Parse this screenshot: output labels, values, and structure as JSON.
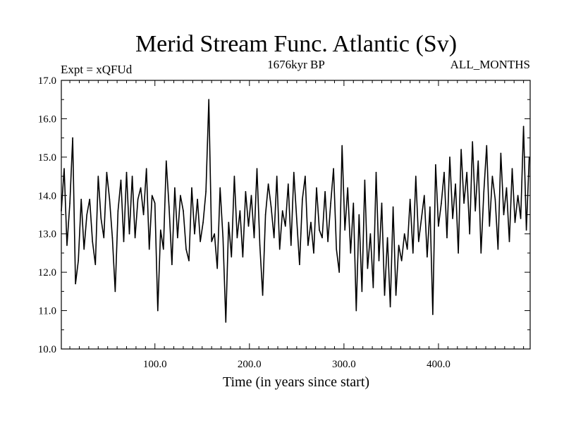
{
  "chart_data": {
    "type": "line",
    "title": "Merid Stream Func. Atlantic (Sv)",
    "subtitle_left": "Expt = xQFUd",
    "subtitle_center": "1676kyr BP",
    "subtitle_right": "ALL_MONTHS",
    "xlabel": "Time (in years since start)",
    "ylabel": "",
    "xlim": [
      1,
      497
    ],
    "ylim": [
      10.0,
      17.0
    ],
    "xticks": [
      100,
      200,
      300,
      400
    ],
    "xtick_labels": [
      "100.0",
      "200.0",
      "300.0",
      "400.0"
    ],
    "yticks": [
      10,
      11,
      12,
      13,
      14,
      15,
      16,
      17
    ],
    "ytick_labels": [
      "10.0",
      "11.0",
      "12.0",
      "13.0",
      "14.0",
      "15.0",
      "16.0",
      "17.0"
    ],
    "grid": false,
    "line_color": "#000000",
    "series": [
      {
        "name": "Merid Stream Func. Atlantic",
        "x": [
          1,
          4,
          7,
          10,
          13,
          16,
          19,
          22,
          25,
          28,
          31,
          34,
          37,
          40,
          43,
          46,
          49,
          52,
          55,
          58,
          61,
          64,
          67,
          70,
          73,
          76,
          79,
          82,
          85,
          88,
          91,
          94,
          97,
          100,
          103,
          106,
          109,
          112,
          115,
          118,
          121,
          124,
          127,
          130,
          133,
          136,
          139,
          142,
          145,
          148,
          151,
          154,
          157,
          160,
          163,
          166,
          169,
          172,
          175,
          178,
          181,
          184,
          187,
          190,
          193,
          196,
          199,
          202,
          205,
          208,
          211,
          214,
          217,
          220,
          223,
          226,
          229,
          232,
          235,
          238,
          241,
          244,
          247,
          250,
          253,
          256,
          259,
          262,
          265,
          268,
          271,
          274,
          277,
          280,
          283,
          286,
          289,
          292,
          295,
          298,
          301,
          304,
          307,
          310,
          313,
          316,
          319,
          322,
          325,
          328,
          331,
          334,
          337,
          340,
          343,
          346,
          349,
          352,
          355,
          358,
          361,
          364,
          367,
          370,
          373,
          376,
          379,
          382,
          385,
          388,
          391,
          394,
          397,
          400,
          403,
          406,
          409,
          412,
          415,
          418,
          421,
          424,
          427,
          430,
          433,
          436,
          439,
          442,
          445,
          448,
          451,
          454,
          457,
          460,
          463,
          466,
          469,
          472,
          475,
          478,
          481,
          484,
          487,
          490,
          493,
          496
        ],
        "values": [
          13.6,
          14.7,
          12.7,
          13.8,
          15.5,
          11.7,
          12.3,
          13.9,
          12.6,
          13.5,
          13.9,
          12.8,
          12.2,
          14.5,
          13.4,
          12.9,
          14.6,
          13.9,
          12.9,
          11.5,
          13.6,
          14.4,
          12.8,
          14.6,
          13.0,
          14.5,
          12.9,
          13.9,
          14.2,
          13.5,
          14.7,
          12.6,
          14.0,
          13.8,
          11.0,
          13.1,
          12.6,
          14.9,
          13.7,
          12.2,
          14.2,
          12.9,
          14.0,
          13.6,
          12.6,
          12.3,
          14.2,
          13.0,
          13.9,
          12.8,
          13.3,
          14.1,
          16.5,
          12.8,
          13.0,
          12.1,
          14.2,
          12.9,
          10.7,
          13.3,
          12.4,
          14.5,
          12.9,
          13.6,
          12.4,
          14.1,
          13.2,
          14.0,
          12.9,
          14.7,
          12.7,
          11.4,
          13.5,
          14.3,
          13.7,
          12.9,
          14.5,
          12.6,
          13.6,
          13.2,
          14.3,
          12.7,
          14.6,
          13.4,
          12.2,
          13.9,
          14.5,
          12.7,
          13.3,
          12.5,
          14.2,
          13.1,
          12.9,
          14.1,
          12.8,
          13.8,
          14.7,
          12.6,
          12.0,
          15.3,
          13.1,
          14.2,
          12.5,
          13.8,
          11.0,
          13.5,
          11.5,
          14.4,
          12.1,
          13.0,
          11.6,
          14.6,
          12.3,
          13.8,
          11.4,
          12.9,
          11.1,
          13.7,
          11.4,
          12.7,
          12.3,
          13.0,
          12.6,
          13.9,
          12.5,
          14.5,
          12.8,
          13.4,
          14.0,
          12.4,
          13.7,
          10.9,
          14.8,
          13.2,
          13.8,
          14.6,
          12.9,
          15.0,
          13.4,
          14.3,
          12.5,
          15.2,
          13.8,
          14.6,
          13.0,
          15.4,
          13.6,
          14.9,
          12.5,
          14.1,
          15.3,
          13.2,
          14.5,
          13.9,
          12.6,
          15.1,
          13.5,
          14.2,
          12.8,
          14.7,
          13.3,
          14.0,
          13.4,
          15.8,
          13.1,
          15.0
        ]
      }
    ]
  }
}
